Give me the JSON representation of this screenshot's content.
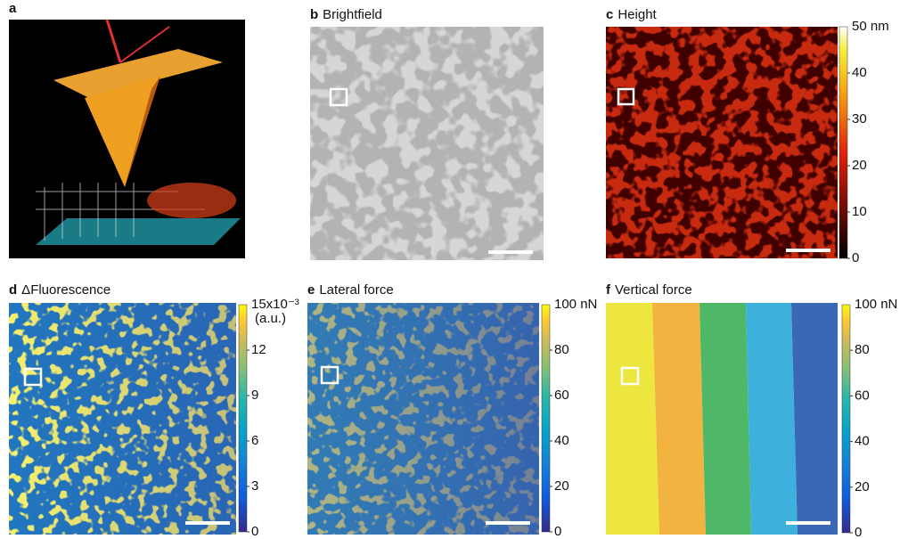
{
  "panels": [
    {
      "letter": "a"
    },
    {
      "letter": "b",
      "title": "Brightfield"
    },
    {
      "letter": "c",
      "title": "Height",
      "colorbar": {
        "max_label": "50 nm",
        "ticks": [
          "40",
          "30",
          "20",
          "10",
          "0"
        ]
      }
    },
    {
      "letter": "d",
      "title": "ΔFluorescence",
      "colorbar": {
        "max_label": "15x10⁻³",
        "unit": "(a.u.)",
        "ticks": [
          "12",
          "9",
          "6",
          "3",
          "0"
        ]
      }
    },
    {
      "letter": "e",
      "title": "Lateral force",
      "colorbar": {
        "max_label": "100 nN",
        "ticks": [
          "80",
          "60",
          "40",
          "20",
          "0"
        ]
      }
    },
    {
      "letter": "f",
      "title": "Vertical force",
      "colorbar": {
        "max_label": "100 nN",
        "ticks": [
          "80",
          "60",
          "40",
          "20",
          "0"
        ]
      }
    }
  ]
}
